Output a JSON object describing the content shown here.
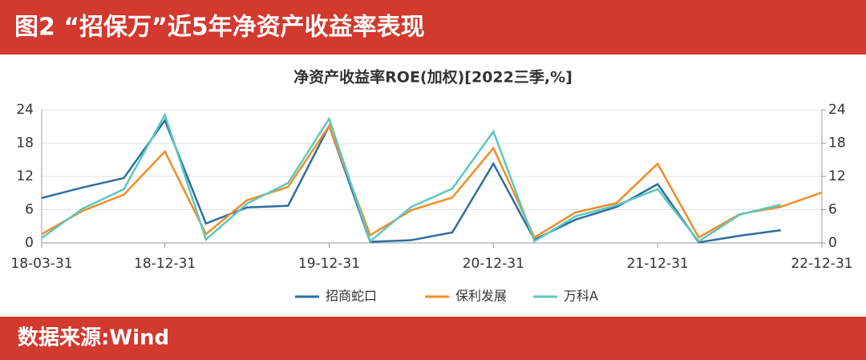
{
  "header": {
    "title": "图2 “招保万”近5年净资产收益率表现"
  },
  "chart_data": {
    "type": "line",
    "title": "净资产收益率ROE(加权)[2022三季,%]",
    "categories": [
      "18-03-31",
      null,
      null,
      "18-12-31",
      null,
      null,
      null,
      "19-12-31",
      null,
      null,
      null,
      "20-12-31",
      null,
      null,
      null,
      "21-12-31",
      null,
      null,
      null,
      "22-12-31"
    ],
    "series": [
      {
        "name": "招商蛇口",
        "color": "#2e6e9e",
        "values": [
          8.1,
          10.0,
          11.7,
          22.1,
          3.5,
          6.4,
          6.7,
          21.1,
          0.2,
          0.5,
          1.9,
          14.3,
          0.6,
          4.2,
          6.5,
          10.6,
          0.1,
          1.3,
          2.3,
          null
        ]
      },
      {
        "name": "保利发展",
        "color": "#f28c28",
        "values": [
          1.6,
          5.8,
          8.7,
          16.5,
          1.6,
          7.7,
          10.1,
          21.1,
          1.4,
          5.9,
          8.2,
          17.1,
          1.0,
          5.5,
          7.2,
          14.3,
          1.0,
          5.2,
          6.5,
          9.1
        ]
      },
      {
        "name": "万科A",
        "color": "#5cc8c0",
        "values": [
          0.9,
          6.2,
          9.7,
          23.1,
          0.6,
          7.1,
          10.8,
          22.4,
          0.3,
          6.5,
          9.8,
          20.1,
          0.3,
          4.8,
          6.8,
          9.7,
          0.3,
          5.1,
          6.9,
          null
        ]
      }
    ],
    "ylim": [
      0,
      24
    ],
    "yticks": [
      0,
      6,
      12,
      18,
      24
    ],
    "y2lim": [
      0,
      24
    ],
    "y2ticks": [
      0,
      6,
      12,
      18,
      24
    ],
    "grid": true,
    "legend": "bottom"
  },
  "footer": {
    "source": "数据来源:Wind"
  }
}
